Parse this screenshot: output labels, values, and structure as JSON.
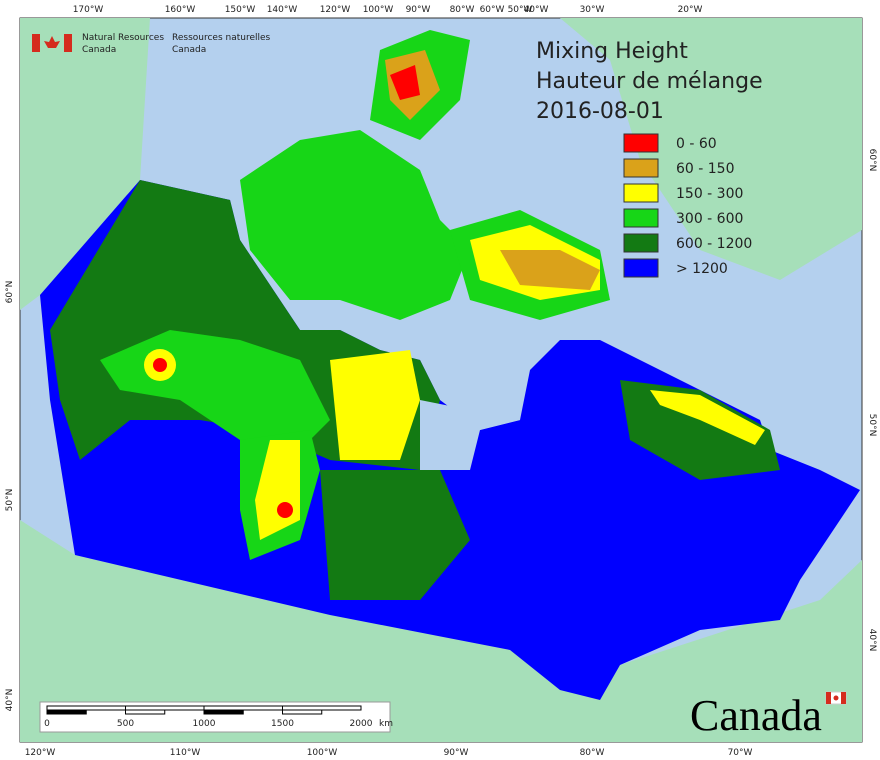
{
  "agency": {
    "en": [
      "Natural Resources",
      "Canada"
    ],
    "fr": [
      "Ressources naturelles",
      "Canada"
    ]
  },
  "title": [
    "Mixing Height",
    "Hauteur de mélange",
    "2016-08-01"
  ],
  "legend": [
    {
      "label": "0 - 60",
      "color": "#ff0000"
    },
    {
      "label": "60 - 150",
      "color": "#daa21a"
    },
    {
      "label": "150 - 300",
      "color": "#ffff00"
    },
    {
      "label": "300 - 600",
      "color": "#17d617"
    },
    {
      "label": "600 - 1200",
      "color": "#137a13"
    },
    {
      "label": "> 1200",
      "color": "#0000ff"
    }
  ],
  "graticule": {
    "top": [
      "170°W",
      "160°W",
      "150°W",
      "140°W",
      "120°W",
      "100°W",
      "90°W",
      "80°W",
      "60°W",
      "50°W",
      "40°W",
      "30°W",
      "20°W"
    ],
    "bottom": [
      "120°W",
      "110°W",
      "100°W",
      "90°W",
      "80°W",
      "70°W"
    ],
    "left": [
      "60°N",
      "50°N",
      "40°N"
    ],
    "right": [
      "60°N",
      "50°N",
      "40°N"
    ]
  },
  "scale_bar": {
    "ticks": [
      "0",
      "500",
      "1000",
      "1500",
      "2000"
    ],
    "unit": "km"
  },
  "wordmark": "Canada"
}
